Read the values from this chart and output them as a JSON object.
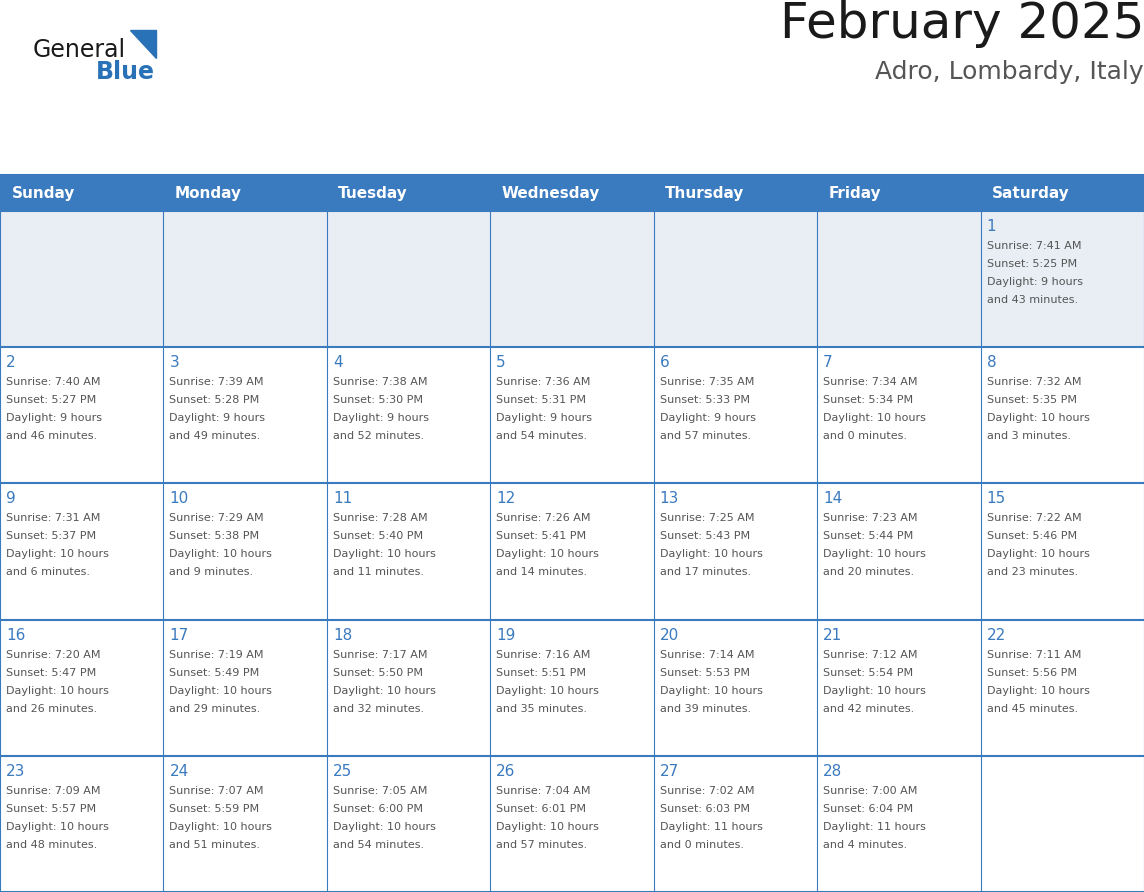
{
  "title": "February 2025",
  "subtitle": "Adro, Lombardy, Italy",
  "days_of_week": [
    "Sunday",
    "Monday",
    "Tuesday",
    "Wednesday",
    "Thursday",
    "Friday",
    "Saturday"
  ],
  "header_bg": "#3a7abf",
  "header_text": "#ffffff",
  "row0_bg": "#e8eef4",
  "row_bg": "#ffffff",
  "border_color": "#3a7abf",
  "day_num_color": "#3a7abf",
  "cell_text_color": "#555555",
  "title_color": "#1a1a1a",
  "subtitle_color": "#555555",
  "logo_general_color": "#1a1a1a",
  "logo_blue_color": "#2a72b8",
  "calendar_data": [
    [
      null,
      null,
      null,
      null,
      null,
      null,
      {
        "day": 1,
        "sunrise": "7:41 AM",
        "sunset": "5:25 PM",
        "daylight": "9 hours\nand 43 minutes."
      }
    ],
    [
      {
        "day": 2,
        "sunrise": "7:40 AM",
        "sunset": "5:27 PM",
        "daylight": "9 hours\nand 46 minutes."
      },
      {
        "day": 3,
        "sunrise": "7:39 AM",
        "sunset": "5:28 PM",
        "daylight": "9 hours\nand 49 minutes."
      },
      {
        "day": 4,
        "sunrise": "7:38 AM",
        "sunset": "5:30 PM",
        "daylight": "9 hours\nand 52 minutes."
      },
      {
        "day": 5,
        "sunrise": "7:36 AM",
        "sunset": "5:31 PM",
        "daylight": "9 hours\nand 54 minutes."
      },
      {
        "day": 6,
        "sunrise": "7:35 AM",
        "sunset": "5:33 PM",
        "daylight": "9 hours\nand 57 minutes."
      },
      {
        "day": 7,
        "sunrise": "7:34 AM",
        "sunset": "5:34 PM",
        "daylight": "10 hours\nand 0 minutes."
      },
      {
        "day": 8,
        "sunrise": "7:32 AM",
        "sunset": "5:35 PM",
        "daylight": "10 hours\nand 3 minutes."
      }
    ],
    [
      {
        "day": 9,
        "sunrise": "7:31 AM",
        "sunset": "5:37 PM",
        "daylight": "10 hours\nand 6 minutes."
      },
      {
        "day": 10,
        "sunrise": "7:29 AM",
        "sunset": "5:38 PM",
        "daylight": "10 hours\nand 9 minutes."
      },
      {
        "day": 11,
        "sunrise": "7:28 AM",
        "sunset": "5:40 PM",
        "daylight": "10 hours\nand 11 minutes."
      },
      {
        "day": 12,
        "sunrise": "7:26 AM",
        "sunset": "5:41 PM",
        "daylight": "10 hours\nand 14 minutes."
      },
      {
        "day": 13,
        "sunrise": "7:25 AM",
        "sunset": "5:43 PM",
        "daylight": "10 hours\nand 17 minutes."
      },
      {
        "day": 14,
        "sunrise": "7:23 AM",
        "sunset": "5:44 PM",
        "daylight": "10 hours\nand 20 minutes."
      },
      {
        "day": 15,
        "sunrise": "7:22 AM",
        "sunset": "5:46 PM",
        "daylight": "10 hours\nand 23 minutes."
      }
    ],
    [
      {
        "day": 16,
        "sunrise": "7:20 AM",
        "sunset": "5:47 PM",
        "daylight": "10 hours\nand 26 minutes."
      },
      {
        "day": 17,
        "sunrise": "7:19 AM",
        "sunset": "5:49 PM",
        "daylight": "10 hours\nand 29 minutes."
      },
      {
        "day": 18,
        "sunrise": "7:17 AM",
        "sunset": "5:50 PM",
        "daylight": "10 hours\nand 32 minutes."
      },
      {
        "day": 19,
        "sunrise": "7:16 AM",
        "sunset": "5:51 PM",
        "daylight": "10 hours\nand 35 minutes."
      },
      {
        "day": 20,
        "sunrise": "7:14 AM",
        "sunset": "5:53 PM",
        "daylight": "10 hours\nand 39 minutes."
      },
      {
        "day": 21,
        "sunrise": "7:12 AM",
        "sunset": "5:54 PM",
        "daylight": "10 hours\nand 42 minutes."
      },
      {
        "day": 22,
        "sunrise": "7:11 AM",
        "sunset": "5:56 PM",
        "daylight": "10 hours\nand 45 minutes."
      }
    ],
    [
      {
        "day": 23,
        "sunrise": "7:09 AM",
        "sunset": "5:57 PM",
        "daylight": "10 hours\nand 48 minutes."
      },
      {
        "day": 24,
        "sunrise": "7:07 AM",
        "sunset": "5:59 PM",
        "daylight": "10 hours\nand 51 minutes."
      },
      {
        "day": 25,
        "sunrise": "7:05 AM",
        "sunset": "6:00 PM",
        "daylight": "10 hours\nand 54 minutes."
      },
      {
        "day": 26,
        "sunrise": "7:04 AM",
        "sunset": "6:01 PM",
        "daylight": "10 hours\nand 57 minutes."
      },
      {
        "day": 27,
        "sunrise": "7:02 AM",
        "sunset": "6:03 PM",
        "daylight": "11 hours\nand 0 minutes."
      },
      {
        "day": 28,
        "sunrise": "7:00 AM",
        "sunset": "6:04 PM",
        "daylight": "11 hours\nand 4 minutes."
      },
      null
    ]
  ]
}
